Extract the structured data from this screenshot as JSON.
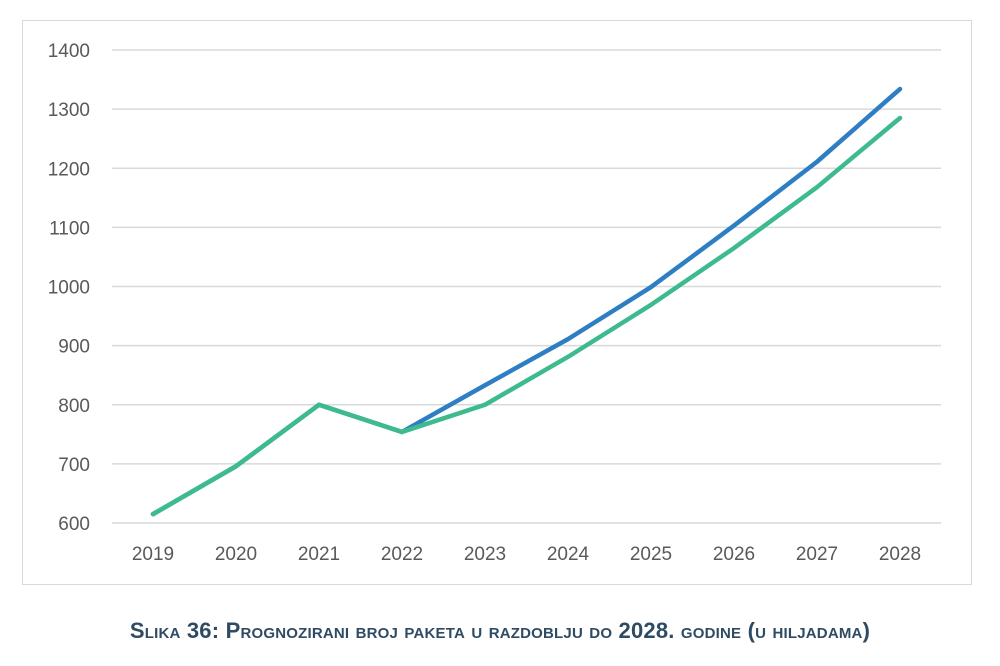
{
  "chart_data": {
    "type": "line",
    "title": "",
    "xlabel": "",
    "ylabel": "",
    "categories": [
      "2019",
      "2020",
      "2021",
      "2022",
      "2023",
      "2024",
      "2025",
      "2026",
      "2027",
      "2028"
    ],
    "ylim": [
      600,
      1400
    ],
    "yticks": [
      600,
      700,
      800,
      900,
      1000,
      1100,
      1200,
      1300,
      1400
    ],
    "grid": true,
    "series": [
      {
        "name": "series-blue",
        "color": "#2e7ec4",
        "values": [
          615,
          696,
          800,
          754,
          833,
          911,
          999,
          1103,
          1211,
          1334
        ]
      },
      {
        "name": "series-green",
        "color": "#3dbb8e",
        "values": [
          615,
          696,
          800,
          754,
          800,
          881,
          969,
          1065,
          1168,
          1285
        ]
      }
    ]
  },
  "caption": "Slika 36: Prognozirani broj paketa u razdoblju do 2028. godine (u hiljadama)"
}
